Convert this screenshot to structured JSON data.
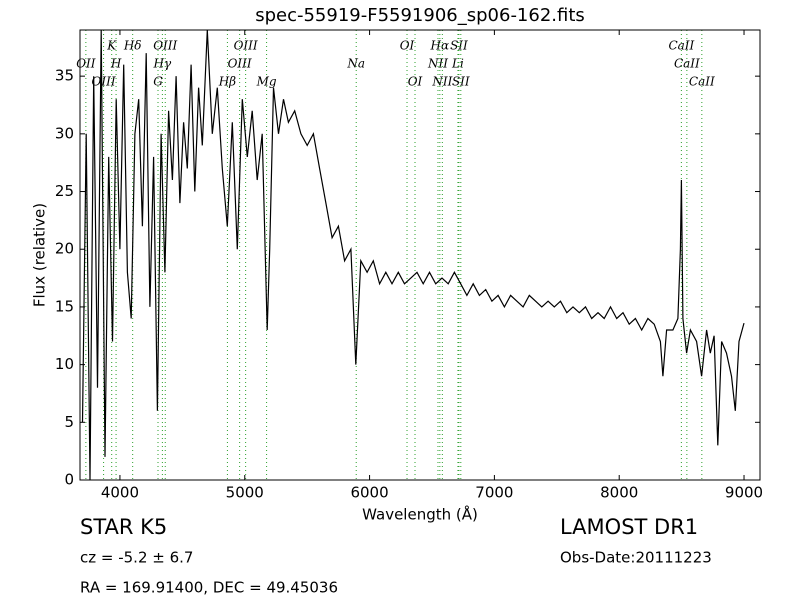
{
  "chart_data": {
    "type": "line",
    "title": "spec-55919-F5591906_sp06-162.fits",
    "xlabel": "Wavelength (Å)",
    "ylabel": "Flux (relative)",
    "xlim": [
      3680,
      9128
    ],
    "ylim": [
      0,
      39
    ],
    "xticks": [
      4000,
      5000,
      6000,
      7000,
      8000,
      9000
    ],
    "yticks": [
      0,
      5,
      10,
      15,
      20,
      25,
      30,
      35
    ],
    "grid": false,
    "line_color": "#2ca02c",
    "spectral_lines": [
      {
        "name": "K",
        "wavelength": 3934
      },
      {
        "name": "OII",
        "wavelength": 3727
      },
      {
        "name": "OIII",
        "wavelength": 3869
      },
      {
        "name": "Hδ",
        "wavelength": 4102
      },
      {
        "name": "Hγ",
        "wavelength": 4340
      },
      {
        "name": "G",
        "wavelength": 4305
      },
      {
        "name": "OIII",
        "wavelength": 4363
      },
      {
        "name": "OIII",
        "wavelength": 4959
      },
      {
        "name": "Hβ",
        "wavelength": 4861
      },
      {
        "name": "OIII",
        "wavelength": 5007
      },
      {
        "name": "Na",
        "wavelength": 5893
      },
      {
        "name": "Mg",
        "wavelength": 5175
      },
      {
        "name": "OI",
        "wavelength": 6300
      },
      {
        "name": "NII",
        "wavelength": 6548
      },
      {
        "name": "OI",
        "wavelength": 6364
      },
      {
        "name": "Hα",
        "wavelength": 6563
      },
      {
        "name": "Li",
        "wavelength": 6708
      },
      {
        "name": "NII",
        "wavelength": 6583
      },
      {
        "name": "SII",
        "wavelength": 6716
      },
      {
        "name": "CaII",
        "wavelength": 8542
      },
      {
        "name": "SII",
        "wavelength": 6731
      },
      {
        "name": "CaII",
        "wavelength": 8498
      },
      {
        "name": "H",
        "wavelength": 3969
      },
      {
        "name": "CaII",
        "wavelength": 8662
      }
    ],
    "series": [
      {
        "name": "flux",
        "color": "#000000",
        "x": [
          3700,
          3730,
          3760,
          3790,
          3820,
          3850,
          3880,
          3910,
          3940,
          3970,
          4000,
          4030,
          4060,
          4090,
          4120,
          4150,
          4180,
          4210,
          4240,
          4270,
          4300,
          4330,
          4360,
          4390,
          4420,
          4450,
          4480,
          4510,
          4540,
          4570,
          4600,
          4630,
          4660,
          4700,
          4740,
          4780,
          4820,
          4860,
          4900,
          4940,
          4980,
          5020,
          5060,
          5100,
          5140,
          5180,
          5200,
          5230,
          5270,
          5310,
          5350,
          5400,
          5450,
          5500,
          5550,
          5600,
          5650,
          5700,
          5750,
          5800,
          5850,
          5890,
          5930,
          5980,
          6030,
          6080,
          6130,
          6180,
          6230,
          6280,
          6330,
          6380,
          6430,
          6480,
          6530,
          6580,
          6630,
          6680,
          6730,
          6780,
          6830,
          6880,
          6930,
          6980,
          7030,
          7080,
          7130,
          7180,
          7230,
          7280,
          7330,
          7380,
          7430,
          7480,
          7530,
          7580,
          7630,
          7680,
          7730,
          7780,
          7830,
          7880,
          7930,
          7980,
          8030,
          8080,
          8130,
          8180,
          8230,
          8280,
          8330,
          8350,
          8380,
          8430,
          8470,
          8490,
          8498,
          8510,
          8540,
          8570,
          8620,
          8660,
          8700,
          8730,
          8760,
          8790,
          8820,
          8860,
          8900,
          8930,
          8960,
          9000
        ],
        "values": [
          5,
          30,
          0,
          35,
          8,
          39,
          2,
          28,
          12,
          33,
          20,
          36,
          18,
          14,
          30,
          33,
          22,
          37,
          15,
          28,
          6,
          30,
          18,
          32,
          26,
          35,
          24,
          31,
          27,
          36,
          25,
          34,
          29,
          39,
          30,
          34,
          27,
          22,
          31,
          20,
          33,
          28,
          32,
          26,
          30,
          13,
          20,
          34,
          30,
          33,
          31,
          32,
          30,
          29,
          30,
          27,
          24,
          21,
          22,
          19,
          20,
          10,
          19,
          18,
          19,
          17,
          18,
          17,
          18,
          17,
          17.5,
          18,
          17,
          18,
          17,
          17.5,
          17,
          18,
          17,
          16,
          17,
          16,
          16.5,
          15.5,
          16,
          15,
          16,
          15.5,
          15,
          16,
          15.5,
          15,
          15.5,
          15,
          15.5,
          14.5,
          15,
          14.5,
          15,
          14,
          14.5,
          14,
          15,
          14,
          14.5,
          13.5,
          14,
          13,
          14,
          13.5,
          12,
          9,
          13,
          13,
          14,
          20,
          26,
          14,
          11,
          13,
          12,
          9,
          13,
          11,
          12.5,
          3,
          12,
          11,
          9,
          6,
          12,
          13.6
        ]
      }
    ],
    "annotations": [
      "STAR   K5",
      "cz = -5.2 ± 6.7",
      "RA = 169.91400, DEC = 49.45036",
      "LAMOST DR1",
      "Obs-Date:20111223"
    ]
  }
}
